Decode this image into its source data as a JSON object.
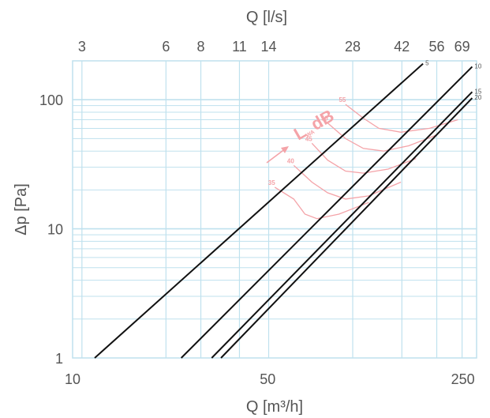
{
  "chart_data": {
    "type": "line",
    "xlabel": "Q [m³/h]",
    "x2label": "Q [l/s]",
    "ylabel": "Δp [Pa]",
    "x_scale": "log",
    "y_scale": "log",
    "xlim": [
      10,
      280
    ],
    "ylim": [
      1,
      200
    ],
    "x_ticks": [
      "10",
      "50",
      "250"
    ],
    "x_tick_values": [
      10,
      50,
      250
    ],
    "x2_ticks": [
      "3",
      "6",
      "8",
      "11",
      "14",
      "28",
      "42",
      "56",
      "69"
    ],
    "x2_tick_values_m3h": [
      10.8,
      21.6,
      28.8,
      39.6,
      50.4,
      100.8,
      151.2,
      201.6,
      248.4
    ],
    "y_ticks": [
      "1",
      "10",
      "100"
    ],
    "y_tick_values": [
      1,
      10,
      100
    ],
    "grid": true,
    "series": [
      {
        "name": "5",
        "points": [
          [
            12,
            1
          ],
          [
            180,
            190
          ]
        ]
      },
      {
        "name": "10",
        "points": [
          [
            24.5,
            1
          ],
          [
            270,
            180
          ]
        ]
      },
      {
        "name": "15",
        "points": [
          [
            31.5,
            1
          ],
          [
            270,
            115
          ]
        ]
      },
      {
        "name": "20",
        "points": [
          [
            34,
            1
          ],
          [
            270,
            103
          ]
        ]
      }
    ],
    "sound_curves": [
      {
        "label": "35",
        "points": [
          [
            53,
            21
          ],
          [
            62,
            17
          ],
          [
            68,
            13
          ],
          [
            75,
            12
          ],
          [
            90,
            13
          ],
          [
            115,
            16
          ]
        ]
      },
      {
        "label": "40",
        "points": [
          [
            62,
            31
          ],
          [
            72,
            23
          ],
          [
            82,
            19
          ],
          [
            95,
            17
          ],
          [
            115,
            18
          ],
          [
            150,
            23
          ]
        ]
      },
      {
        "label": "45",
        "points": [
          [
            72,
            46
          ],
          [
            82,
            34
          ],
          [
            95,
            28
          ],
          [
            110,
            27
          ],
          [
            135,
            29
          ],
          [
            170,
            35
          ]
        ]
      },
      {
        "label": "50",
        "points": [
          [
            82,
            66
          ],
          [
            95,
            50
          ],
          [
            110,
            42
          ],
          [
            130,
            40
          ],
          [
            160,
            44
          ],
          [
            200,
            53
          ]
        ]
      },
      {
        "label": "55",
        "points": [
          [
            95,
            92
          ],
          [
            110,
            72
          ],
          [
            125,
            60
          ],
          [
            150,
            56
          ],
          [
            190,
            60
          ],
          [
            240,
            70
          ]
        ]
      }
    ],
    "annotation": {
      "main": "L",
      "sub": "WA",
      "suffix": "dB"
    }
  }
}
